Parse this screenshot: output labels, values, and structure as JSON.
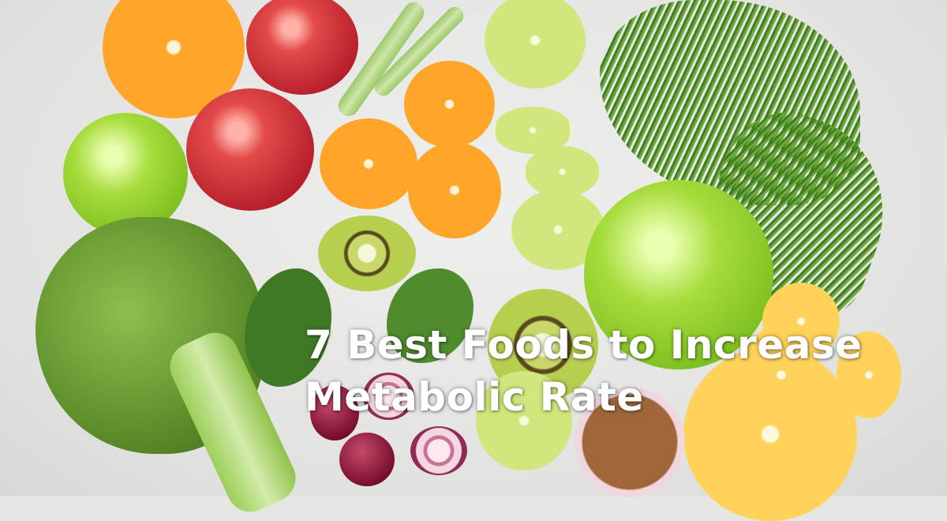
{
  "headline": {
    "line1": "7 Best Foods to Increase",
    "line2": "Metabolic Rate"
  },
  "colors": {
    "text": "#ffffff",
    "background": "#e6e6e5",
    "orange": "#ffa62a",
    "green_apple": "#a6dc3c",
    "red_apple": "#c8283a"
  }
}
